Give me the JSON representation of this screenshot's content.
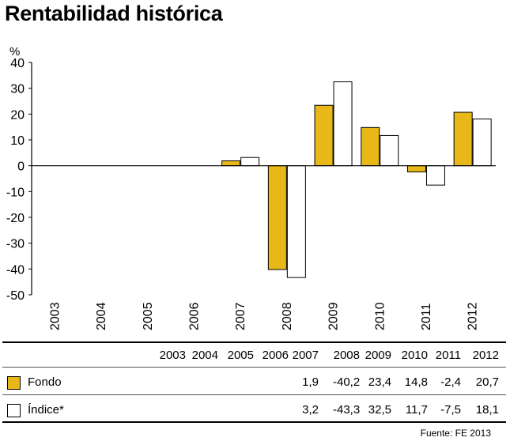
{
  "title": "Rentabilidad histórica",
  "source": "Fuente: FE 2013",
  "colors": {
    "fondo": "#E8B818",
    "indice": "#FFFFFF",
    "axis": "#000000"
  },
  "chart_data": {
    "type": "bar",
    "ylabel": "%",
    "ylim": [
      -50,
      40
    ],
    "yticks": [
      40,
      30,
      20,
      10,
      0,
      -10,
      -20,
      -30,
      -40,
      -50
    ],
    "categories": [
      "2003",
      "2004",
      "2005",
      "2006",
      "2007",
      "2008",
      "2009",
      "2010",
      "2011",
      "2012"
    ],
    "series": [
      {
        "name": "Fondo",
        "values": [
          null,
          null,
          null,
          null,
          1.9,
          -40.2,
          23.4,
          14.8,
          -2.4,
          20.7
        ]
      },
      {
        "name": "Índice*",
        "values": [
          null,
          null,
          null,
          null,
          3.2,
          -43.3,
          32.5,
          11.7,
          -7.5,
          18.1
        ]
      }
    ],
    "legend": "table-below"
  },
  "table": {
    "years": [
      "2003",
      "2004",
      "2005",
      "2006",
      "2007",
      "2008",
      "2009",
      "2010",
      "2011",
      "2012"
    ],
    "rows": [
      {
        "label": "Fondo",
        "values": [
          "",
          "",
          "",
          "",
          "1,9",
          "-40,2",
          "23,4",
          "14,8",
          "-2,4",
          "20,7"
        ]
      },
      {
        "label": "Índice*",
        "values": [
          "",
          "",
          "",
          "",
          "3,2",
          "-43,3",
          "32,5",
          "11,7",
          "-7,5",
          "18,1"
        ]
      }
    ]
  }
}
